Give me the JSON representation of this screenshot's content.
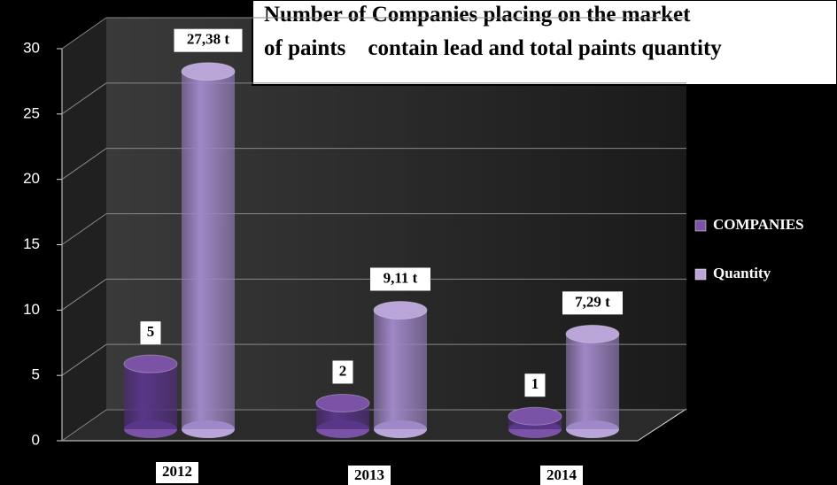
{
  "chart_data": {
    "type": "bar",
    "title": [
      "Number of Companies placing on the market",
      "of paints    contain lead and total paints quantity"
    ],
    "categories": [
      "2012",
      "2013",
      "2014"
    ],
    "series": [
      {
        "name": "COMPANIES",
        "color": "#7a52a6",
        "values": [
          5,
          2,
          1
        ]
      },
      {
        "name": "Quantity",
        "color": "#b9a5d8",
        "values": [
          27.38,
          9.11,
          7.29
        ],
        "value_labels": [
          "27,38 t",
          "9,11 t",
          "7,29 t"
        ]
      }
    ],
    "ylim": [
      0,
      30
    ],
    "yticks": [
      0,
      5,
      10,
      15,
      20,
      25,
      30
    ],
    "grid": true,
    "legend": "right"
  }
}
